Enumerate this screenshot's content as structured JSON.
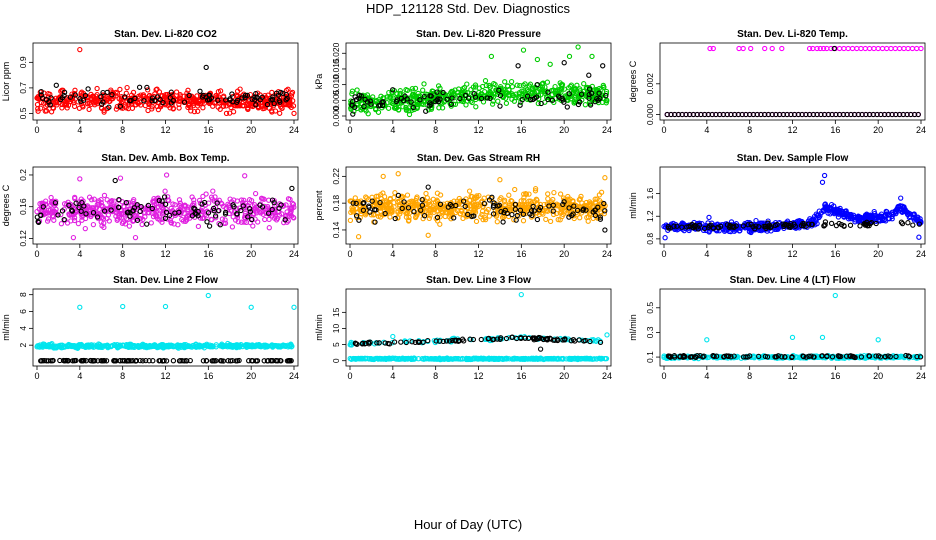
{
  "page": {
    "title": "HDP_121128  Std. Dev. Diagnostics",
    "xlabel": "Hour of Day (UTC)"
  },
  "chart_data": [
    {
      "type": "scatter",
      "title": "Stan. Dev. Li-820 CO2",
      "ylabel": "Licor ppm",
      "xlim": [
        0,
        24
      ],
      "ylim": [
        0.48,
        1.02
      ],
      "xticks": [
        "0",
        "4",
        "8",
        "12",
        "16",
        "20",
        "24"
      ],
      "yticks": [
        {
          "v": 0.5,
          "t": "0.5"
        },
        {
          "v": 0.7,
          "t": "0.7"
        },
        {
          "v": 0.9,
          "t": "0.9"
        }
      ],
      "series": [
        {
          "color": "#ff0000",
          "values_note": "dense",
          "center": 0.6,
          "spread": 0.08,
          "n": 520,
          "outliers": [
            [
              4.0,
              1.0
            ],
            [
              0.9,
              0.52
            ],
            [
              17.7,
              0.5
            ],
            [
              24.0,
              0.5
            ],
            [
              21.7,
              0.54
            ]
          ]
        },
        {
          "color": "#000000",
          "center": 0.62,
          "spread": 0.07,
          "n": 90,
          "outliers": [
            [
              15.8,
              0.86
            ],
            [
              1.8,
              0.72
            ]
          ]
        }
      ]
    },
    {
      "type": "scatter",
      "title": "Stan. Dev. Li-820 Pressure",
      "ylabel": "kPa",
      "xlim": [
        0,
        24
      ],
      "ylim": [
        0,
        0.022
      ],
      "xticks": [
        "0",
        "4",
        "8",
        "12",
        "16",
        "20",
        "24"
      ],
      "yticks": [
        {
          "v": 0,
          "t": "0.000"
        },
        {
          "v": 0.005,
          "t": "0.005"
        },
        {
          "v": 0.01,
          "t": "0.010"
        },
        {
          "v": 0.015,
          "t": "0.015"
        },
        {
          "v": 0.02,
          "t": "0.020"
        }
      ],
      "series": [
        {
          "color": "#00cc00",
          "trend": [
            [
              0,
              0.004
            ],
            [
              6,
              0.005
            ],
            [
              12,
              0.007
            ],
            [
              18,
              0.008
            ],
            [
              24,
              0.0065
            ]
          ],
          "spread": 0.0035,
          "n": 560,
          "outliers": [
            [
              21.3,
              0.022
            ],
            [
              16.2,
              0.021
            ],
            [
              13.2,
              0.019
            ],
            [
              20.5,
              0.019
            ],
            [
              22.6,
              0.019
            ],
            [
              17.5,
              0.018
            ],
            [
              18.7,
              0.0165
            ]
          ]
        },
        {
          "color": "#000000",
          "trend": [
            [
              0,
              0.004
            ],
            [
              12,
              0.006
            ],
            [
              24,
              0.006
            ]
          ],
          "spread": 0.003,
          "n": 90,
          "outliers": [
            [
              23.6,
              0.016
            ],
            [
              20.0,
              0.017
            ],
            [
              15.7,
              0.016
            ],
            [
              22.3,
              0.013
            ],
            [
              1.3,
              0.003
            ]
          ]
        }
      ]
    },
    {
      "type": "scatter",
      "title": "Stan. Dev. Li-820 Temp.",
      "ylabel": "degrees C",
      "xlim": [
        0,
        24
      ],
      "ylim": [
        -0.0001,
        0.0044
      ],
      "xticks": [
        "0",
        "4",
        "8",
        "12",
        "16",
        "20",
        "24"
      ],
      "yticks": [
        {
          "v": 0,
          "t": "0.000"
        },
        {
          "v": 0.002,
          "t": "0.002"
        }
      ],
      "series": [
        {
          "color": "#ff00ff",
          "levels": [
            0,
            0.0043
          ],
          "top_points": [
            4.3,
            4.6,
            7.0,
            7.4,
            8.1,
            9.4,
            10.1,
            11.0,
            13.6,
            13.9,
            14.3,
            14.6,
            14.9,
            15.2,
            15.6,
            16.0,
            16.4,
            16.8,
            17.2,
            17.6,
            18.0,
            18.4,
            18.8,
            19.2,
            19.6,
            20.0,
            20.4,
            20.8,
            21.2,
            21.6,
            22.0,
            22.4,
            22.8,
            23.2,
            23.6,
            24.0
          ]
        },
        {
          "color": "#000000",
          "levels": [
            0
          ],
          "top_points": [
            15.9
          ]
        }
      ]
    },
    {
      "type": "scatter",
      "title": "Stan. Dev. Amb. Box Temp.",
      "ylabel": "degrees C",
      "xlim": [
        0,
        24
      ],
      "ylim": [
        0.118,
        0.205
      ],
      "xticks": [
        "0",
        "4",
        "8",
        "12",
        "16",
        "20",
        "24"
      ],
      "yticks": [
        {
          "v": 0.12,
          "t": "0.12"
        },
        {
          "v": 0.16,
          "t": "0.16"
        },
        {
          "v": 0.2,
          "t": "0.2"
        }
      ],
      "series": [
        {
          "color": "#e020e0",
          "center": 0.155,
          "spread": 0.018,
          "n": 540,
          "outliers": [
            [
              4.0,
              0.195
            ],
            [
              7.8,
              0.196
            ],
            [
              12.1,
              0.2
            ],
            [
              19.4,
              0.199
            ],
            [
              3.4,
              0.121
            ],
            [
              9.2,
              0.121
            ]
          ]
        },
        {
          "color": "#000000",
          "center": 0.155,
          "spread": 0.016,
          "n": 90,
          "outliers": [
            [
              7.3,
              0.193
            ],
            [
              23.8,
              0.183
            ]
          ]
        }
      ]
    },
    {
      "type": "scatter",
      "title": "Stan. Dev. Gas Stream RH",
      "ylabel": "percent",
      "xlim": [
        0,
        24
      ],
      "ylim": [
        0.125,
        0.228
      ],
      "xticks": [
        "0",
        "4",
        "8",
        "12",
        "16",
        "20",
        "24"
      ],
      "yticks": [
        {
          "v": 0.14,
          "t": "0.14"
        },
        {
          "v": 0.18,
          "t": "0.18"
        },
        {
          "v": 0.22,
          "t": "0.22"
        }
      ],
      "series": [
        {
          "color": "#ffa500",
          "center": 0.174,
          "spread": 0.02,
          "n": 600,
          "outliers": [
            [
              0.8,
              0.13
            ],
            [
              7.3,
              0.132
            ],
            [
              4.5,
              0.224
            ],
            [
              3.1,
              0.22
            ],
            [
              14.0,
              0.215
            ],
            [
              23.8,
              0.218
            ]
          ]
        },
        {
          "color": "#000000",
          "center": 0.17,
          "spread": 0.018,
          "n": 90,
          "outliers": [
            [
              7.3,
              0.204
            ],
            [
              23.8,
              0.14
            ]
          ]
        }
      ]
    },
    {
      "type": "scatter",
      "title": "Stan. Dev. Sample Flow",
      "ylabel": "ml/min",
      "xlim": [
        0,
        24
      ],
      "ylim": [
        0.78,
        2.0
      ],
      "xticks": [
        "0",
        "4",
        "8",
        "12",
        "16",
        "20",
        "24"
      ],
      "yticks": [
        {
          "v": 0.8,
          "t": "0.8"
        },
        {
          "v": 1.2,
          "t": "1.2"
        },
        {
          "v": 1.6,
          "t": "1.6"
        }
      ],
      "series": [
        {
          "color": "#0000ff",
          "trend": [
            [
              0,
              1.02
            ],
            [
              8,
              1.0
            ],
            [
              12,
              1.05
            ],
            [
              14,
              1.1
            ],
            [
              15,
              1.35
            ],
            [
              16,
              1.3
            ],
            [
              18,
              1.15
            ],
            [
              21,
              1.2
            ],
            [
              22,
              1.35
            ],
            [
              24,
              1.1
            ]
          ],
          "spread": 0.08,
          "n": 560,
          "outliers": [
            [
              15.0,
              1.92
            ],
            [
              14.8,
              1.8
            ],
            [
              22.1,
              1.52
            ],
            [
              0.1,
              0.82
            ],
            [
              23.8,
              0.83
            ],
            [
              4.2,
              1.18
            ]
          ]
        },
        {
          "color": "#000000",
          "trend": [
            [
              0,
              1.0
            ],
            [
              12,
              1.04
            ],
            [
              24,
              1.08
            ]
          ],
          "spread": 0.05,
          "n": 100,
          "outliers": []
        }
      ]
    },
    {
      "type": "scatter",
      "title": "Stan. Dev. Line 2 Flow",
      "ylabel": "ml/min",
      "xlim": [
        0,
        24
      ],
      "ylim": [
        0,
        8.2
      ],
      "xticks": [
        "0",
        "4",
        "8",
        "12",
        "16",
        "20",
        "24"
      ],
      "yticks": [
        {
          "v": 2,
          "t": "2"
        },
        {
          "v": 4,
          "t": "4"
        },
        {
          "v": 6,
          "t": "6"
        },
        {
          "v": 8,
          "t": "8"
        }
      ],
      "series": [
        {
          "color": "#00e5ee",
          "center": 1.9,
          "spread": 0.2,
          "n": 460,
          "outliers": [
            [
              4.0,
              6.5
            ],
            [
              8.0,
              6.6
            ],
            [
              12.0,
              6.6
            ],
            [
              16.0,
              7.9
            ],
            [
              20.0,
              6.5
            ],
            [
              24.0,
              6.5
            ]
          ]
        },
        {
          "color": "#000000",
          "center": 0.15,
          "spread": 0.03,
          "n": 120,
          "outliers": []
        }
      ]
    },
    {
      "type": "scatter",
      "title": "Stan. Dev. Line 3 Flow",
      "ylabel": "ml/min",
      "xlim": [
        0,
        24
      ],
      "ylim": [
        -0.4,
        21
      ],
      "xticks": [
        "0",
        "4",
        "8",
        "12",
        "16",
        "20",
        "24"
      ],
      "yticks": [
        {
          "v": 0,
          "t": "0"
        },
        {
          "v": 5,
          "t": "5"
        },
        {
          "v": 10,
          "t": "10"
        },
        {
          "v": 15,
          "t": "15"
        }
      ],
      "series": [
        {
          "color": "#00e5ee",
          "center": 0.6,
          "spread": 0.2,
          "n": 400,
          "outliers": [
            [
              16.0,
              20.5
            ],
            [
              24.0,
              8.0
            ],
            [
              4.0,
              7.5
            ]
          ]
        },
        {
          "color": "#00e5ee",
          "trend": [
            [
              0,
              5.3
            ],
            [
              12,
              6.5
            ],
            [
              16,
              7.3
            ],
            [
              24,
              6.0
            ]
          ],
          "spread": 0.5,
          "n": 80,
          "outliers": []
        },
        {
          "color": "#000000",
          "trend": [
            [
              0,
              5.2
            ],
            [
              12,
              6.5
            ],
            [
              16,
              7.2
            ],
            [
              24,
              5.8
            ]
          ],
          "spread": 0.4,
          "n": 90,
          "outliers": [
            [
              17.8,
              3.6
            ]
          ]
        }
      ]
    },
    {
      "type": "scatter",
      "title": "Stan. Dev. Line 4 (LT) Flow",
      "ylabel": "ml/min",
      "xlim": [
        0,
        24
      ],
      "ylim": [
        0.06,
        0.62
      ],
      "xticks": [
        "0",
        "4",
        "8",
        "12",
        "16",
        "20",
        "24"
      ],
      "yticks": [
        {
          "v": 0.1,
          "t": "0.1"
        },
        {
          "v": 0.3,
          "t": "0.3"
        },
        {
          "v": 0.5,
          "t": "0.5"
        }
      ],
      "series": [
        {
          "color": "#00e5ee",
          "center": 0.1,
          "spread": 0.01,
          "n": 380,
          "outliers": [
            [
              4.0,
              0.24
            ],
            [
              12.0,
              0.26
            ],
            [
              14.8,
              0.26
            ],
            [
              16.0,
              0.6
            ],
            [
              20.0,
              0.24
            ]
          ]
        },
        {
          "color": "#000000",
          "center": 0.105,
          "spread": 0.008,
          "n": 90,
          "outliers": []
        }
      ]
    }
  ]
}
